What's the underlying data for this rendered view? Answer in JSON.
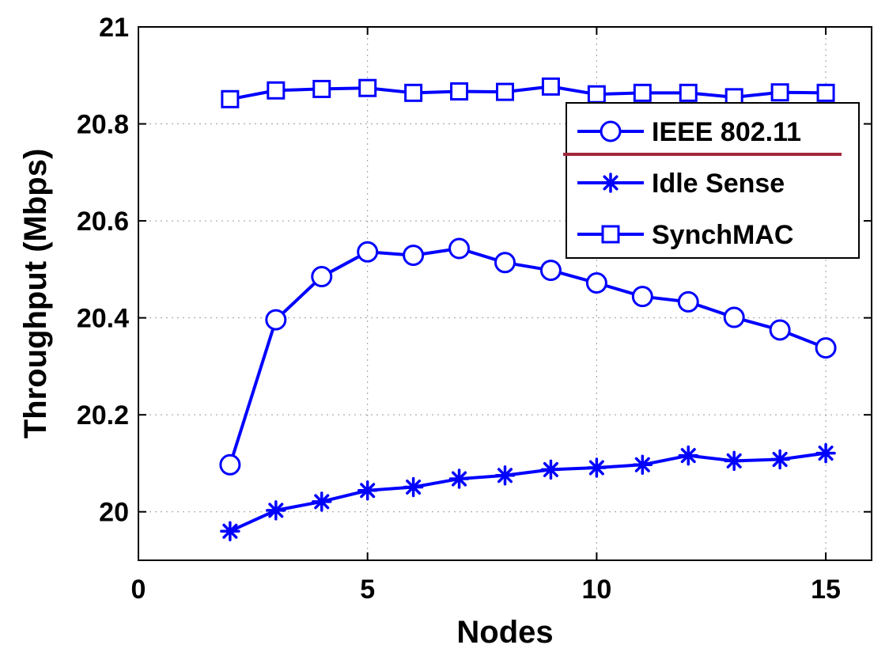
{
  "chart_data": {
    "type": "line",
    "xlabel": "Nodes",
    "ylabel": "Throughput (Mbps)",
    "xlim": [
      0,
      16
    ],
    "ylim": [
      19.9,
      21
    ],
    "xticks": [
      0,
      5,
      10,
      15
    ],
    "yticks": [
      20,
      20.2,
      20.4,
      20.6,
      20.8,
      21
    ],
    "ytick_labels": [
      "20",
      "20.2",
      "20.4",
      "20.6",
      "20.8",
      "21"
    ],
    "xtick_labels": [
      "0",
      "5",
      "10",
      "15"
    ],
    "grid": true,
    "legend_position": "top-right",
    "line_color": "#0000ff",
    "underline_color": "#a0283c",
    "x": [
      2,
      3,
      4,
      5,
      6,
      7,
      8,
      9,
      10,
      11,
      12,
      13,
      14,
      15
    ],
    "series": [
      {
        "name": "IEEE 802.11",
        "marker": "circle",
        "values": [
          20.097,
          20.396,
          20.485,
          20.536,
          20.529,
          20.543,
          20.514,
          20.498,
          20.472,
          20.444,
          20.433,
          20.401,
          20.375,
          20.338
        ]
      },
      {
        "name": "Idle Sense",
        "marker": "asterisk",
        "values": [
          19.96,
          20.003,
          20.021,
          20.044,
          20.051,
          20.068,
          20.075,
          20.087,
          20.091,
          20.097,
          20.116,
          20.105,
          20.108,
          20.121
        ]
      },
      {
        "name": "SynchMAC",
        "marker": "square",
        "values": [
          20.851,
          20.869,
          20.872,
          20.874,
          20.864,
          20.867,
          20.866,
          20.877,
          20.861,
          20.864,
          20.864,
          20.855,
          20.865,
          20.864
        ]
      }
    ]
  }
}
